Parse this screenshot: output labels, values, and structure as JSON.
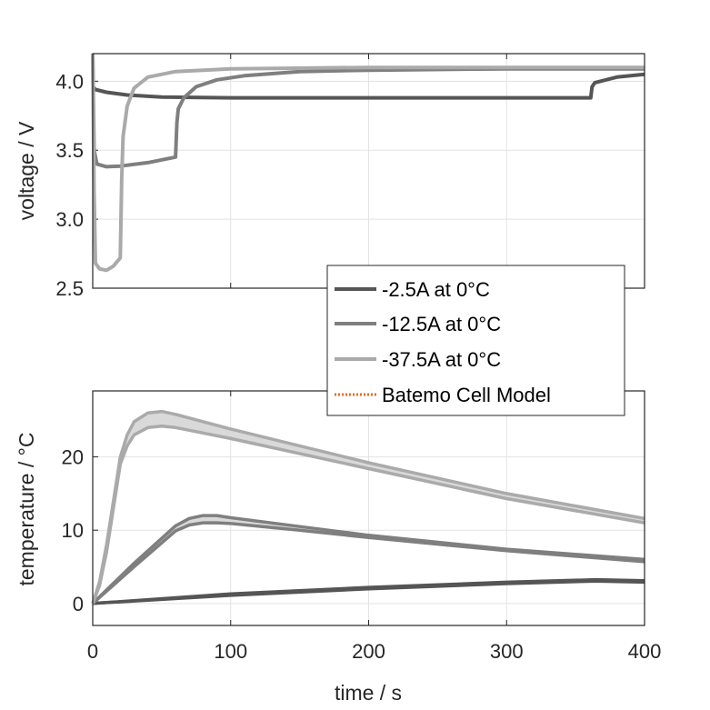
{
  "chart_data": [
    {
      "type": "line",
      "panel": "top",
      "xlabel": "",
      "ylabel": "voltage / V",
      "xlim": [
        0,
        400
      ],
      "ylim": [
        2.5,
        4.2
      ],
      "xticks": [
        0,
        100,
        200,
        300,
        400
      ],
      "yticks": [
        2.5,
        3.0,
        3.5,
        4.0
      ],
      "ytick_labels": [
        "2.5",
        "3.0",
        "3.5",
        "4.0"
      ],
      "grid": true,
      "series": [
        {
          "name": "-2.5A at 0°C",
          "color": "#555555",
          "x": [
            0,
            2,
            10,
            25,
            50,
            100,
            200,
            300,
            361,
            362,
            364,
            380,
            400
          ],
          "y": [
            3.96,
            3.94,
            3.92,
            3.9,
            3.885,
            3.88,
            3.88,
            3.88,
            3.88,
            3.96,
            3.99,
            4.03,
            4.05
          ]
        },
        {
          "name": "-12.5A at 0°C",
          "color": "#7f7f7f",
          "x": [
            0,
            1,
            3,
            10,
            20,
            40,
            60,
            61,
            62,
            66,
            75,
            90,
            110,
            150,
            200,
            300,
            400
          ],
          "y": [
            4.2,
            3.5,
            3.4,
            3.38,
            3.385,
            3.41,
            3.45,
            3.7,
            3.8,
            3.88,
            3.96,
            4.01,
            4.04,
            4.07,
            4.08,
            4.09,
            4.09
          ]
        },
        {
          "name": "-37.5A at 0°C",
          "color": "#aaaaaa",
          "x": [
            0,
            1,
            2,
            5,
            10,
            15,
            20,
            21,
            22,
            25,
            30,
            40,
            60,
            100,
            200,
            400
          ],
          "y": [
            4.2,
            3.2,
            2.68,
            2.64,
            2.63,
            2.66,
            2.72,
            3.3,
            3.6,
            3.82,
            3.95,
            4.03,
            4.07,
            4.09,
            4.1,
            4.1
          ]
        }
      ]
    },
    {
      "type": "line",
      "panel": "bottom",
      "xlabel": "time / s",
      "ylabel": "temperature / °C",
      "xlim": [
        0,
        400
      ],
      "ylim": [
        -3,
        29
      ],
      "xticks": [
        0,
        100,
        200,
        300,
        400
      ],
      "xtick_labels": [
        "0",
        "100",
        "200",
        "300",
        "400"
      ],
      "yticks": [
        0,
        10,
        20
      ],
      "ytick_labels": [
        "0",
        "10",
        "20"
      ],
      "grid": true,
      "series": [
        {
          "name": "-2.5A at 0°C",
          "color": "#555555",
          "x": [
            0,
            100,
            200,
            300,
            365,
            400
          ],
          "upper": [
            0,
            1.3,
            2.2,
            2.9,
            3.25,
            3.1
          ],
          "lower": [
            0,
            1.1,
            2.0,
            2.7,
            3.05,
            2.9
          ]
        },
        {
          "name": "-12.5A at 0°C",
          "color": "#7f7f7f",
          "x": [
            0,
            30,
            60,
            70,
            80,
            90,
            100,
            150,
            200,
            300,
            400
          ],
          "upper": [
            0,
            5.5,
            10.6,
            11.6,
            12,
            12,
            11.7,
            10.5,
            9.3,
            7.4,
            6.0
          ],
          "lower": [
            0,
            5.0,
            9.9,
            10.7,
            11.0,
            11.0,
            10.9,
            10.0,
            9.0,
            7.2,
            5.7
          ]
        },
        {
          "name": "-37.5A at 0°C",
          "color": "#aaaaaa",
          "x": [
            0,
            5,
            10,
            15,
            20,
            25,
            30,
            40,
            50,
            60,
            100,
            200,
            300,
            400
          ],
          "upper": [
            0,
            3,
            8,
            14,
            20,
            23,
            24.8,
            26,
            26.2,
            25.8,
            23.8,
            19.2,
            15.0,
            11.6
          ],
          "lower": [
            0,
            2.5,
            7,
            13,
            19,
            21.5,
            23,
            24,
            24.2,
            24.0,
            22.5,
            18.4,
            14.3,
            11.0
          ]
        }
      ]
    }
  ],
  "legend": {
    "placement": "center-right",
    "entries": [
      {
        "label": "-2.5A at 0°C",
        "color": "#555555",
        "style": "solid"
      },
      {
        "label": "-12.5A at 0°C",
        "color": "#7f7f7f",
        "style": "solid"
      },
      {
        "label": "-37.5A at 0°C",
        "color": "#aaaaaa",
        "style": "solid"
      },
      {
        "label": "Batemo Cell Model",
        "color": "#ea6a1c",
        "style": "dotted"
      }
    ]
  }
}
